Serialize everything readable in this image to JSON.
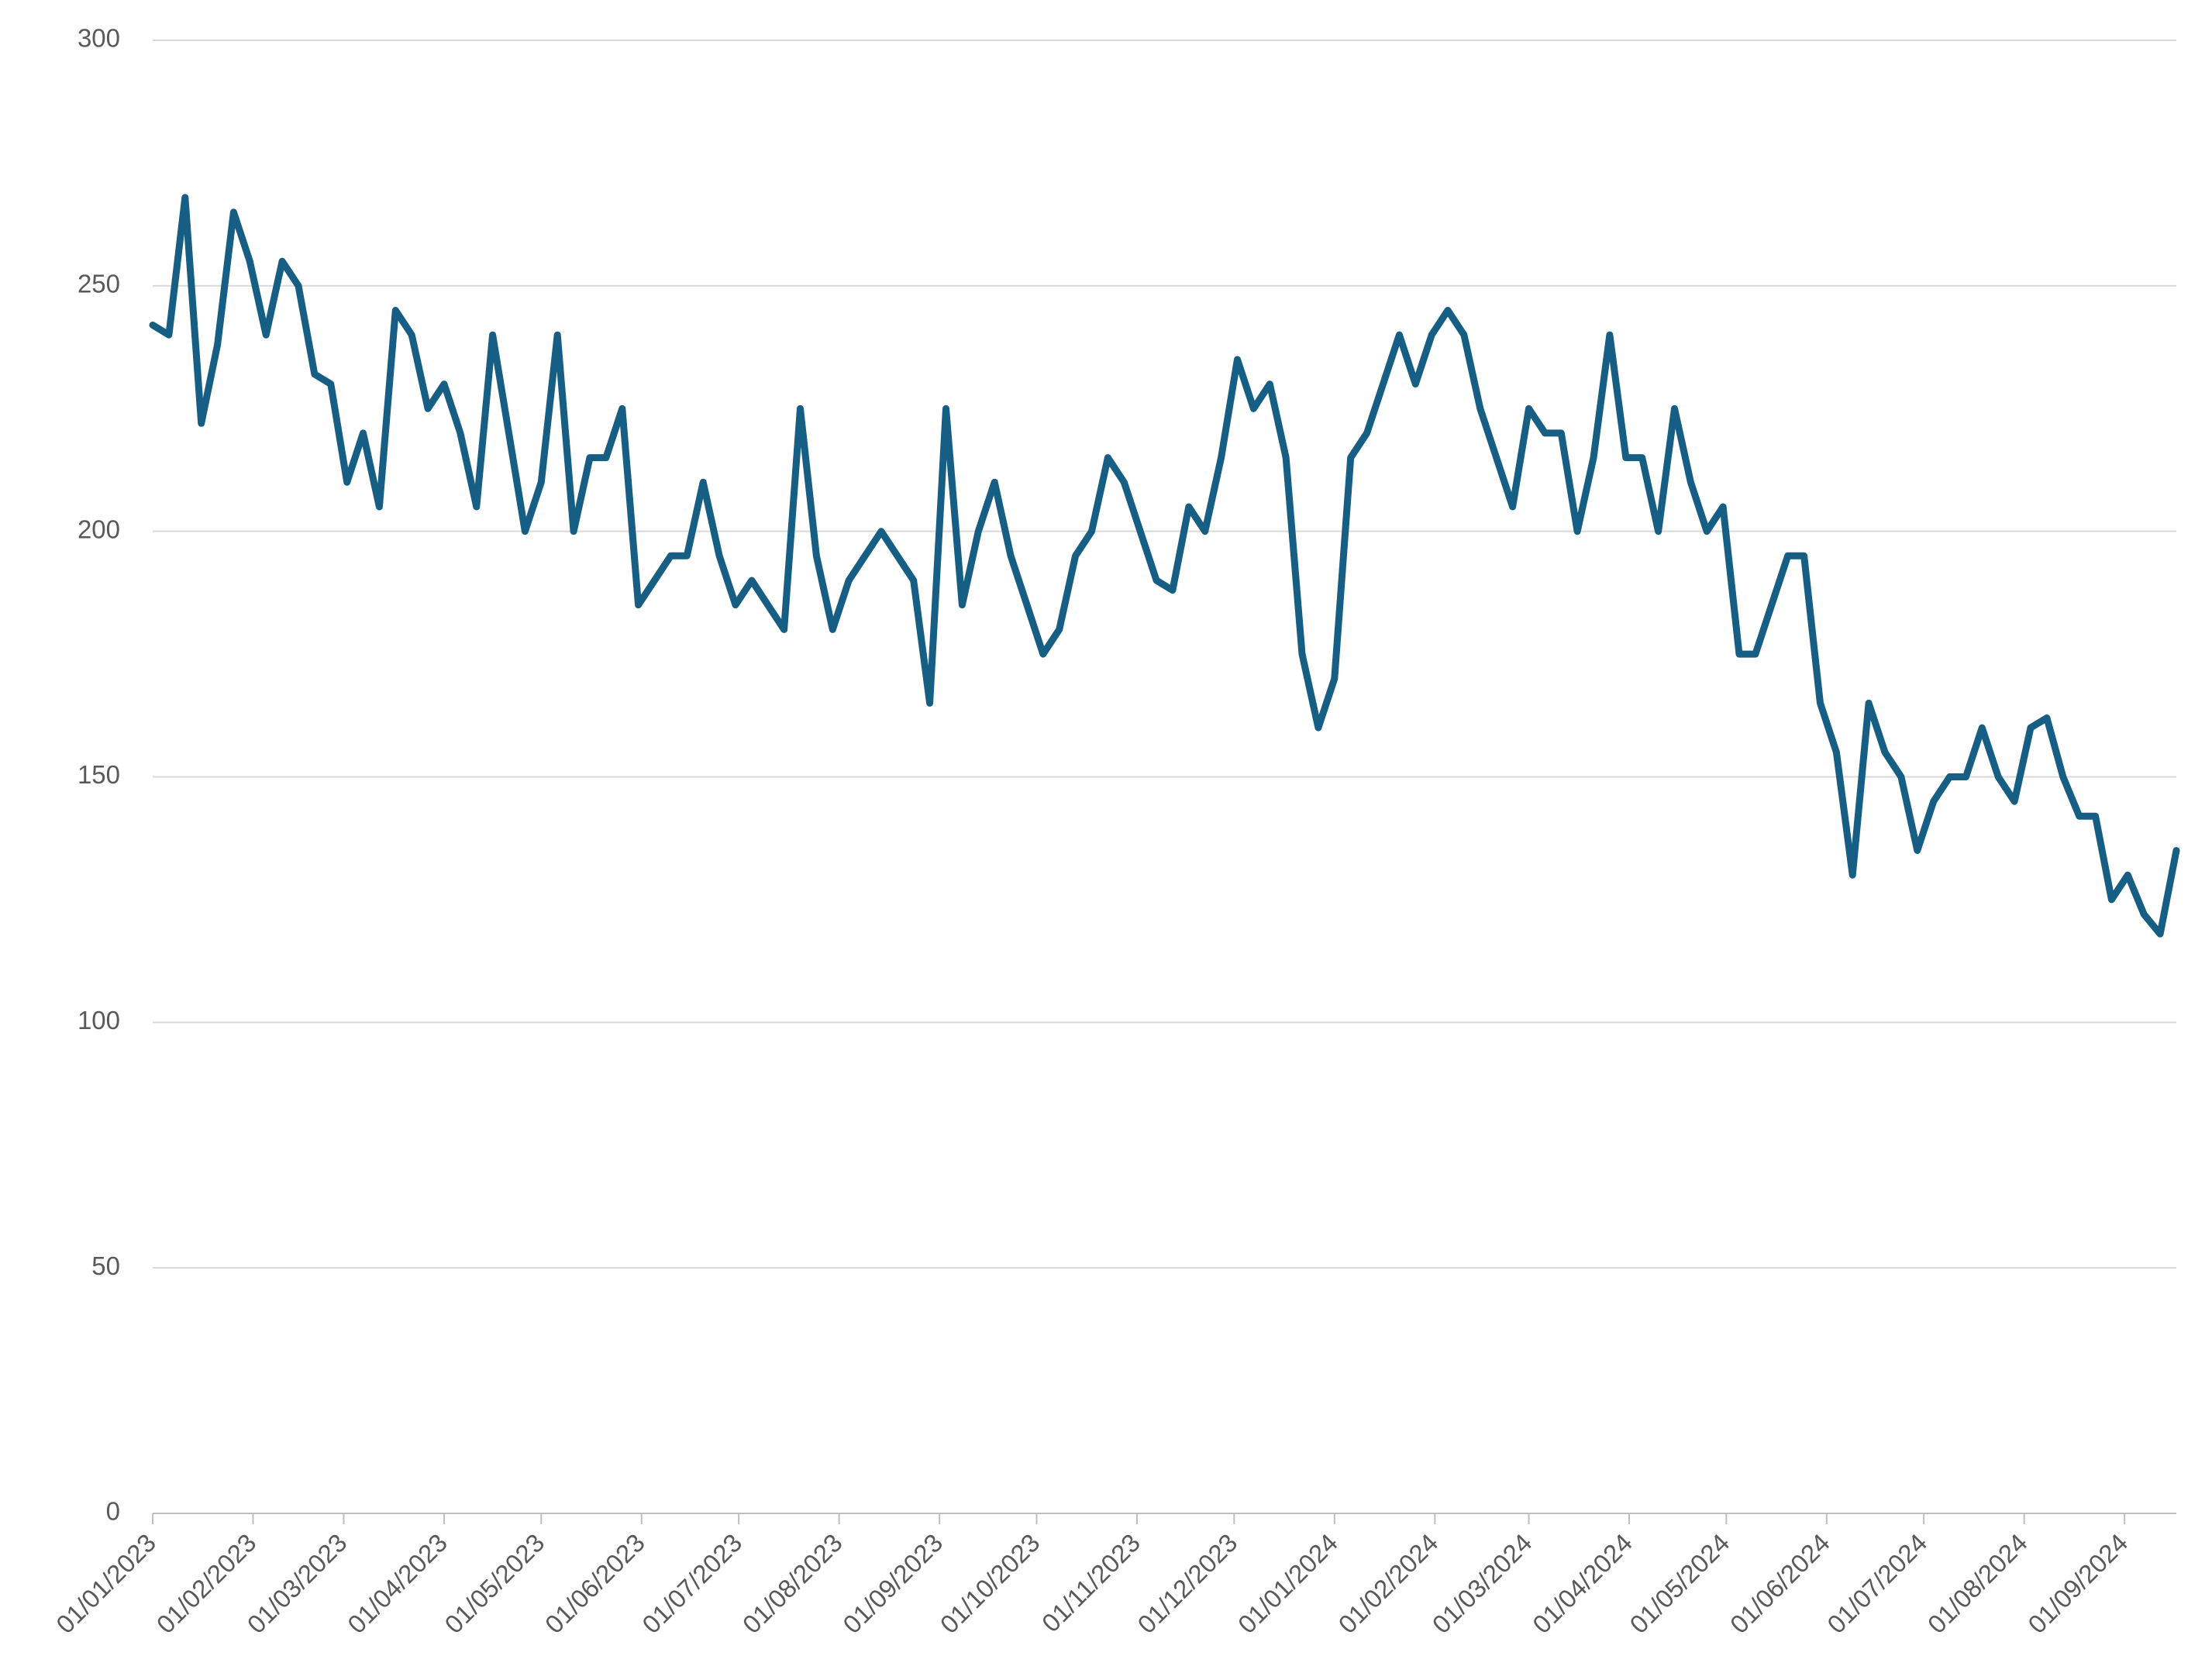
{
  "chart_data": {
    "type": "line",
    "color": "#175e84",
    "grid": true,
    "x": [
      "01/01/2023",
      "06/01/2023",
      "11/01/2023",
      "16/01/2023",
      "21/01/2023",
      "26/01/2023",
      "31/01/2023",
      "05/02/2023",
      "10/02/2023",
      "15/02/2023",
      "20/02/2023",
      "25/02/2023",
      "02/03/2023",
      "07/03/2023",
      "12/03/2023",
      "17/03/2023",
      "22/03/2023",
      "27/03/2023",
      "01/04/2023",
      "06/04/2023",
      "11/04/2023",
      "16/04/2023",
      "21/04/2023",
      "26/04/2023",
      "01/05/2023",
      "06/05/2023",
      "11/05/2023",
      "16/05/2023",
      "21/05/2023",
      "26/05/2023",
      "31/05/2023",
      "05/06/2023",
      "10/06/2023",
      "15/06/2023",
      "20/06/2023",
      "25/06/2023",
      "30/06/2023",
      "05/07/2023",
      "10/07/2023",
      "15/07/2023",
      "20/07/2023",
      "25/07/2023",
      "30/07/2023",
      "04/08/2023",
      "09/08/2023",
      "14/08/2023",
      "19/08/2023",
      "24/08/2023",
      "29/08/2023",
      "03/09/2023",
      "08/09/2023",
      "13/09/2023",
      "18/09/2023",
      "23/09/2023",
      "28/09/2023",
      "03/10/2023",
      "08/10/2023",
      "13/10/2023",
      "18/10/2023",
      "23/10/2023",
      "28/10/2023",
      "02/11/2023",
      "07/11/2023",
      "12/11/2023",
      "17/11/2023",
      "22/11/2023",
      "27/11/2023",
      "02/12/2023",
      "07/12/2023",
      "12/12/2023",
      "17/12/2023",
      "22/12/2023",
      "27/12/2023",
      "01/01/2024",
      "06/01/2024",
      "11/01/2024",
      "16/01/2024",
      "21/01/2024",
      "26/01/2024",
      "31/01/2024",
      "05/02/2024",
      "10/02/2024",
      "15/02/2024",
      "20/02/2024",
      "25/02/2024",
      "01/03/2024",
      "06/03/2024",
      "11/03/2024",
      "16/03/2024",
      "21/03/2024",
      "26/03/2024",
      "31/03/2024",
      "05/04/2024",
      "10/04/2024",
      "15/04/2024",
      "20/04/2024",
      "25/04/2024",
      "30/04/2024",
      "05/05/2024",
      "10/05/2024",
      "15/05/2024",
      "20/05/2024",
      "25/05/2024",
      "30/05/2024",
      "04/06/2024",
      "09/06/2024",
      "14/06/2024",
      "19/06/2024",
      "24/06/2024",
      "29/06/2024",
      "04/07/2024",
      "09/07/2024",
      "14/07/2024",
      "19/07/2024",
      "24/07/2024",
      "29/07/2024",
      "03/08/2024",
      "08/08/2024",
      "13/08/2024",
      "18/08/2024",
      "23/08/2024",
      "28/08/2024",
      "02/09/2024",
      "07/09/2024",
      "12/09/2024",
      "17/09/2024"
    ],
    "values": [
      242,
      240,
      268,
      222,
      238,
      265,
      255,
      240,
      255,
      250,
      232,
      230,
      210,
      220,
      205,
      245,
      240,
      225,
      230,
      220,
      205,
      240,
      220,
      200,
      210,
      240,
      200,
      215,
      215,
      225,
      185,
      190,
      195,
      195,
      210,
      195,
      185,
      190,
      185,
      180,
      225,
      195,
      180,
      190,
      195,
      200,
      195,
      190,
      165,
      225,
      185,
      200,
      210,
      195,
      185,
      175,
      180,
      195,
      200,
      215,
      210,
      200,
      190,
      188,
      205,
      200,
      215,
      235,
      225,
      230,
      215,
      175,
      160,
      170,
      215,
      220,
      230,
      240,
      230,
      240,
      245,
      240,
      225,
      215,
      205,
      225,
      220,
      220,
      200,
      215,
      240,
      215,
      215,
      200,
      225,
      210,
      200,
      205,
      175,
      175,
      185,
      195,
      195,
      165,
      155,
      130,
      165,
      155,
      150,
      135,
      145,
      150,
      150,
      160,
      150,
      145,
      160,
      162,
      150,
      142,
      142,
      125,
      130,
      122,
      118,
      135
    ],
    "xlim": [
      "01/01/2023",
      "17/09/2024"
    ],
    "xticks": [
      "01/01/2023",
      "01/02/2023",
      "01/03/2023",
      "01/04/2023",
      "01/05/2023",
      "01/06/2023",
      "01/07/2023",
      "01/08/2023",
      "01/09/2023",
      "01/10/2023",
      "01/11/2023",
      "01/12/2023",
      "01/01/2024",
      "01/02/2024",
      "01/03/2024",
      "01/04/2024",
      "01/05/2024",
      "01/06/2024",
      "01/07/2024",
      "01/08/2024",
      "01/09/2024"
    ],
    "ylim": [
      0,
      300
    ],
    "yticks": [
      0,
      50,
      100,
      150,
      200,
      250,
      300
    ]
  }
}
